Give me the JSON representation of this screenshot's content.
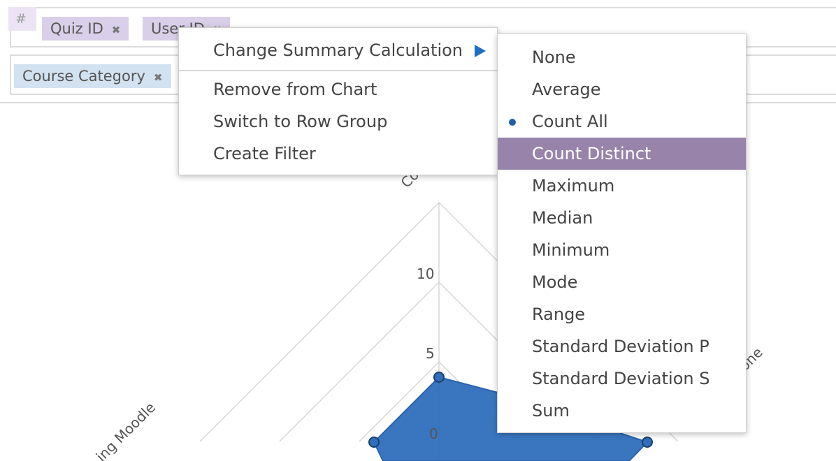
{
  "values_zone": {
    "hash_icon": "#",
    "chips": [
      {
        "label": "Quiz ID",
        "remove_icon": "✖"
      },
      {
        "label": "User ID",
        "remove_icon": "✖"
      }
    ]
  },
  "columns_zone": {
    "chips": [
      {
        "label": "Course Category",
        "remove_icon": "✖"
      }
    ]
  },
  "context_menu": {
    "items": [
      {
        "label": "Change Summary Calculation",
        "has_submenu": true
      },
      {
        "label": "Remove from Chart"
      },
      {
        "label": "Switch to Row Group"
      },
      {
        "label": "Create Filter"
      }
    ]
  },
  "submenu": {
    "selected": "Count All",
    "highlighted": "Count Distinct",
    "items": [
      {
        "label": "None"
      },
      {
        "label": "Average"
      },
      {
        "label": "Count All"
      },
      {
        "label": "Count Distinct"
      },
      {
        "label": "Maximum"
      },
      {
        "label": "Median"
      },
      {
        "label": "Minimum"
      },
      {
        "label": "Mode"
      },
      {
        "label": "Range"
      },
      {
        "label": "Standard Deviation P"
      },
      {
        "label": "Standard Deviation S"
      },
      {
        "label": "Sum"
      }
    ]
  },
  "colors": {
    "value_chip": "#dacfe9",
    "column_chip": "#d3e2f1",
    "menu_highlight": "#9884aa",
    "series_fill": "#2f6fbd",
    "submenu_arrow": "#1f6fc2"
  },
  "chart_data": {
    "type": "radar",
    "radial_ticks": [
      {
        "value": 0,
        "label": "0"
      },
      {
        "value": 5,
        "label": "5"
      },
      {
        "value": 10,
        "label": "10"
      }
    ],
    "axis_labels_partial": [
      "Co",
      "one",
      "ing Moodle"
    ],
    "grid": true
  }
}
